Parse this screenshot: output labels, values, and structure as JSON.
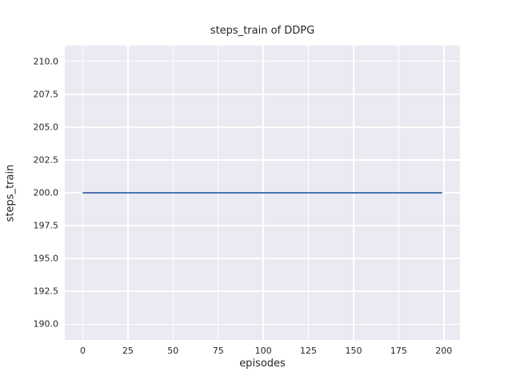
{
  "figure": {
    "background": "#ffffff"
  },
  "chart_data": {
    "type": "line",
    "title": "steps_train of DDPG",
    "xlabel": "episodes",
    "ylabel": "steps_train",
    "x_ticks": [
      0,
      25,
      50,
      75,
      100,
      125,
      150,
      175,
      200
    ],
    "x_tick_labels": [
      "0",
      "25",
      "50",
      "75",
      "100",
      "125",
      "150",
      "175",
      "200"
    ],
    "y_ticks": [
      190.0,
      192.5,
      195.0,
      197.5,
      200.0,
      202.5,
      205.0,
      207.5,
      210.0
    ],
    "y_tick_labels": [
      "190.0",
      "192.5",
      "195.0",
      "197.5",
      "200.0",
      "202.5",
      "205.0",
      "207.5",
      "210.0"
    ],
    "xlim": [
      -9.95,
      208.95
    ],
    "ylim": [
      188.8,
      211.2
    ],
    "grid": true,
    "legend": null,
    "series": [
      {
        "name": "steps_train",
        "x": [
          0,
          199
        ],
        "y": [
          200,
          200
        ],
        "constant_y": 200,
        "color": "#4c72b0"
      }
    ],
    "styles": {
      "plot_bg": "#eaeaf2",
      "grid_color": "#ffffff",
      "text_color": "#262626"
    }
  }
}
